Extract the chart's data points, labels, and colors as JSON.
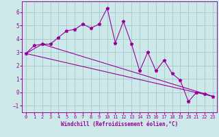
{
  "xlabel": "Windchill (Refroidissement éolien,°C)",
  "background_color": "#cce8e8",
  "line_color": "#990099",
  "xlim": [
    -0.5,
    23.5
  ],
  "ylim": [
    -1.5,
    6.8
  ],
  "yticks": [
    -1,
    0,
    1,
    2,
    3,
    4,
    5,
    6
  ],
  "xticks": [
    0,
    1,
    2,
    3,
    4,
    5,
    6,
    7,
    8,
    9,
    10,
    11,
    12,
    13,
    14,
    15,
    16,
    17,
    18,
    19,
    20,
    21,
    22,
    23
  ],
  "line1_x": [
    0,
    1,
    2,
    3,
    4,
    5,
    6,
    7,
    8,
    9,
    10,
    11,
    12,
    13,
    14,
    15,
    16,
    17,
    18,
    19,
    20,
    21,
    22,
    23
  ],
  "line1_y": [
    2.9,
    3.5,
    3.6,
    3.6,
    4.1,
    4.6,
    4.7,
    5.1,
    4.8,
    5.1,
    6.3,
    3.7,
    5.3,
    3.6,
    1.6,
    3.0,
    1.6,
    2.4,
    1.4,
    0.9,
    -0.7,
    0.0,
    -0.1,
    -0.3
  ],
  "line2_x": [
    0,
    23
  ],
  "line2_y": [
    2.9,
    -0.3
  ],
  "line3_x": [
    0,
    2,
    23
  ],
  "line3_y": [
    2.9,
    3.6,
    -0.3
  ],
  "grid_color": "#aacccc",
  "grid_alpha": 1.0
}
